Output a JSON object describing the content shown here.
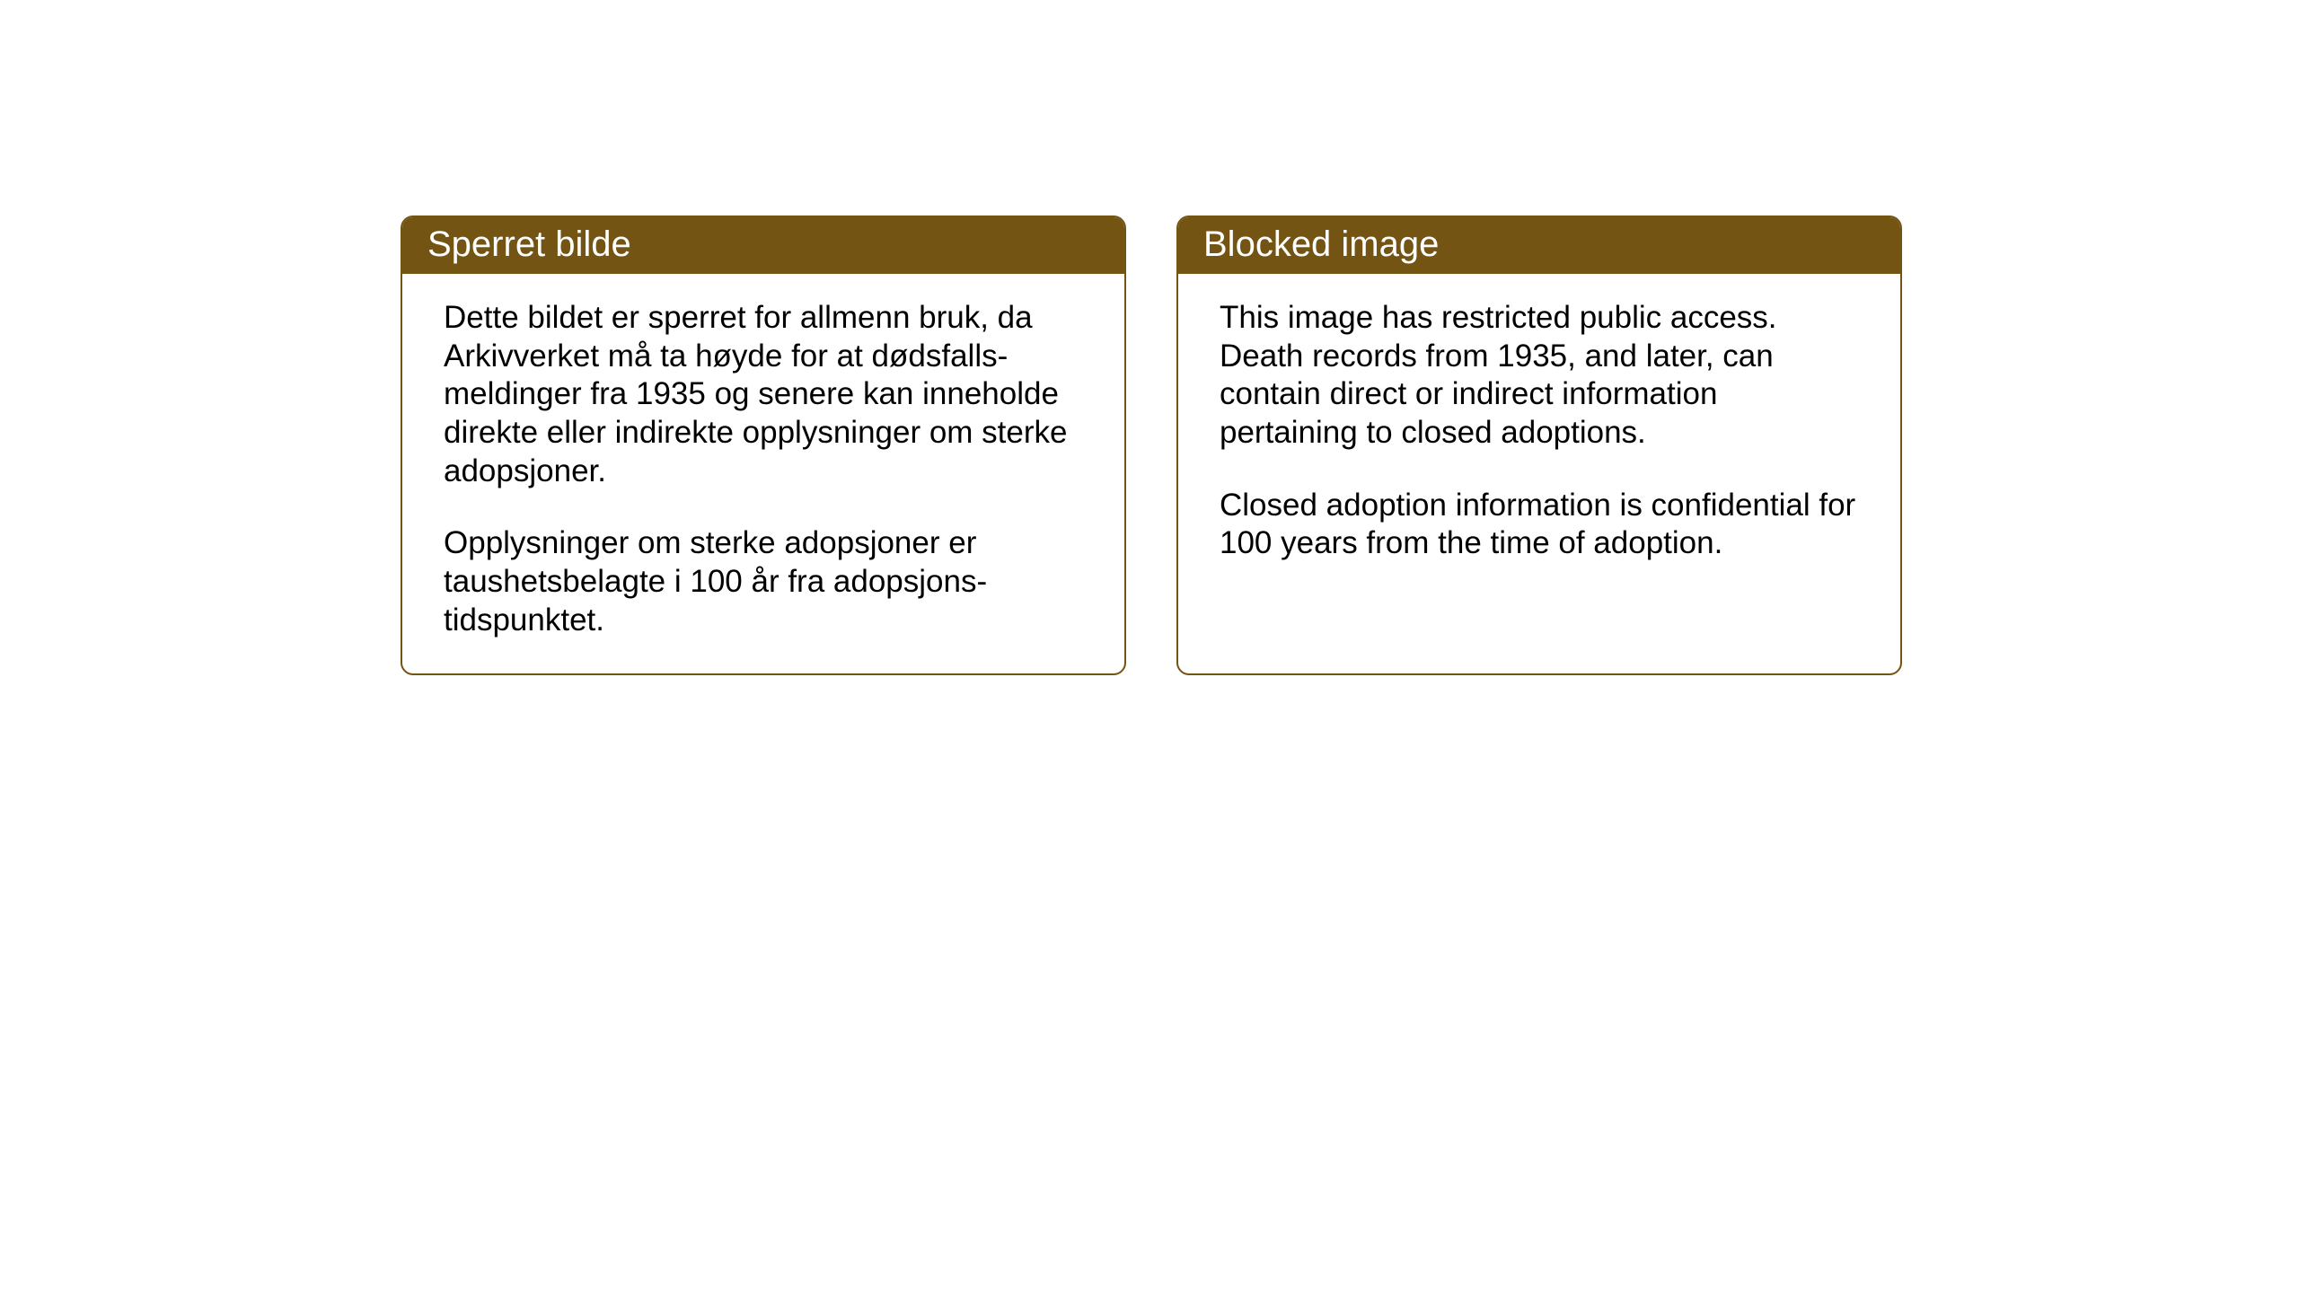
{
  "layout": {
    "background_color": "#ffffff",
    "card_border_color": "#745413",
    "header_bg_color": "#745413",
    "header_text_color": "#ffffff",
    "body_text_color": "#000000",
    "header_fontsize": 40,
    "body_fontsize": 35
  },
  "cards": {
    "norwegian": {
      "title": "Sperret bilde",
      "paragraph1": "Dette bildet er sperret for allmenn bruk, da Arkivverket må ta høyde for at dødsfalls-meldinger fra 1935 og senere kan inneholde direkte eller indirekte opplysninger om sterke adopsjoner.",
      "paragraph2": "Opplysninger om sterke adopsjoner er taushetsbelagte i 100 år fra adopsjons-tidspunktet."
    },
    "english": {
      "title": "Blocked image",
      "paragraph1": "This image has restricted public access. Death records from 1935, and later, can contain direct or indirect information pertaining to closed adoptions.",
      "paragraph2": "Closed adoption information is confidential for 100 years from the time of adoption."
    }
  }
}
